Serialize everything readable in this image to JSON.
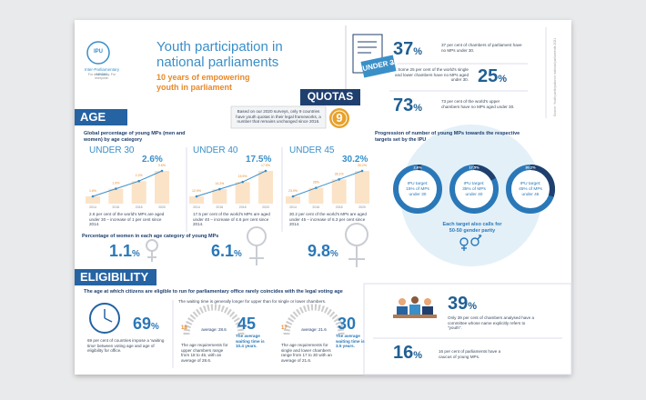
{
  "header": {
    "logo_text": "IPU",
    "org": "Inter-Parliamentary Union",
    "org_tagline": "For democracy. For everyone.",
    "title": "Youth participation in national parliaments",
    "subtitle": "10 years of empowering youth in parliament"
  },
  "badge": "UNDER 30",
  "top_stats": [
    {
      "number": "37",
      "unit": "%",
      "text": "37 per cent of chambers of parliament have no MPs under 30."
    },
    {
      "number": "25",
      "unit": "%",
      "text": "Some 25 per cent of the world's single and lower chambers have no MPs aged under 30."
    },
    {
      "number": "73",
      "unit": "%",
      "text": "73 per cent of the world's upper chambers have no MPs aged under 30."
    }
  ],
  "side_note": "Source: Youth participation in national parliaments 2021",
  "quotas": {
    "title": "QUOTAS",
    "text": "Based on our 2020 surveys, only 9 countries have youth quotas in their legal frameworks, a number that remains unchanged since 2016.",
    "number": "9"
  },
  "age": {
    "title": "AGE",
    "chart_heading": "Global percentage of young MPs (men and women) by age category",
    "panels": [
      {
        "label": "UNDER 30",
        "headline": "2.6%",
        "years": [
          "2014",
          "2016",
          "2018",
          "2020"
        ],
        "values": [
          1.6,
          1.9,
          2.2,
          2.6
        ],
        "value_labels": [
          "1.6%",
          "1.9%",
          "2.2%",
          "2.6%"
        ],
        "caption": "2.6 per cent of the world's MPs are aged under 30 – increase of 1 per cent since 2014."
      },
      {
        "label": "UNDER 40",
        "headline": "17.5%",
        "years": [
          "2014",
          "2016",
          "2018",
          "2020"
        ],
        "values": [
          12.9,
          14.2,
          15.5,
          17.5
        ],
        "value_labels": [
          "12.9%",
          "14.2%",
          "15.5%",
          "17.5%"
        ],
        "caption": "17.5 per cent of the world's MPs are aged under 40 – increase of 4.6 per cent since 2014."
      },
      {
        "label": "UNDER 45",
        "headline": "30.2%",
        "years": [
          "2014",
          "2016",
          "2018",
          "2020"
        ],
        "values": [
          23.9,
          26.0,
          28.1,
          30.2
        ],
        "value_labels": [
          "23.9%",
          "26%",
          "28.1%",
          "30.2%"
        ],
        "caption": "30.2 per cent of the world's MPs are aged under 45 – increase of 6.3 per cent since 2014."
      }
    ],
    "women_heading": "Percentage of women in each age category of young MPs",
    "women": [
      {
        "number": "1.1",
        "unit": "%"
      },
      {
        "number": "6.1",
        "unit": "%"
      },
      {
        "number": "9.8",
        "unit": "%"
      }
    ]
  },
  "progression": {
    "heading": "Progression of number of young MPs towards the respective targets set by the IPU",
    "donuts": [
      {
        "value": 2.6,
        "label": "2.6%",
        "target": "IPU target: 15% of MPs under 30"
      },
      {
        "value": 17.5,
        "label": "17.5%",
        "target": "IPU target: 35% of MPs under 40"
      },
      {
        "value": 30.2,
        "label": "30.2%",
        "target": "IPU target: 45% of MPs under 45"
      }
    ],
    "note": "Each target also calls for 50-50 gender parity"
  },
  "eligibility": {
    "title": "ELIGIBILITY",
    "heading": "The age at which citizens are eligible to run for parliamentary office rarely coincides with the legal voting age",
    "stat": {
      "number": "69",
      "unit": "%",
      "text": "69 per cent of countries impose a 'waiting time' between voting age and age of eligibility for office."
    },
    "waiting_note": "The waiting time is generally longer for upper than for single or lower chambers.",
    "ranges": [
      {
        "min": "18",
        "average": "average: 28.6",
        "max": "45",
        "caption": "The age requirements for upper chambers range from 18 to 45, with an average of 28.6.",
        "waiting": "The average waiting time is 10.4 years."
      },
      {
        "min": "17",
        "average": "average: 21.6",
        "max": "30",
        "caption": "The age requirements for single and lower chambers range from 17 to 30 with an average of 21.6.",
        "waiting": "The average waiting time is 3.5 years."
      }
    ]
  },
  "committees": {
    "number": "39",
    "unit": "%",
    "text": "Only 39 per cent of chambers analysed have a committee whose name explicitly refers to \"youth\"."
  },
  "caucus": {
    "number": "16",
    "unit": "%",
    "text": "16 per cent of parliaments have a caucus of young MPs."
  }
}
